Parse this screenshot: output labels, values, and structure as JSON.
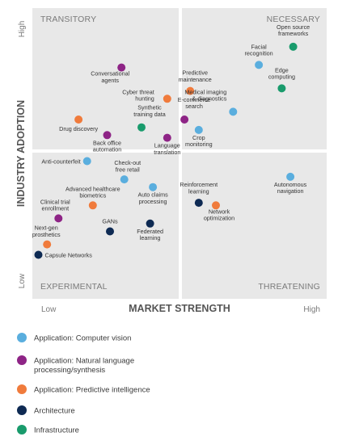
{
  "chart_data": {
    "type": "scatter",
    "title": "",
    "xlabel": "MARKET STRENGTH",
    "ylabel": "INDUSTRY ADOPTION",
    "x_low": "Low",
    "x_high": "High",
    "y_low": "Low",
    "y_high": "High",
    "xlim": [
      0,
      100
    ],
    "ylim": [
      0,
      100
    ],
    "grid": false,
    "legend_position": "bottom",
    "quadrants": {
      "top_left": "TRANSITORY",
      "top_right": "NECESSARY",
      "bottom_left": "EXPERIMENTAL",
      "bottom_right": "THREATENING"
    },
    "categories": [
      {
        "key": "cv",
        "name": "Application: Computer vision",
        "color": "#5aaede"
      },
      {
        "key": "nlp",
        "name": "Application: Natural language processing/synthesis",
        "color": "#8e2486"
      },
      {
        "key": "pi",
        "name": "Application: Predictive intelligence",
        "color": "#f07b3c"
      },
      {
        "key": "arch",
        "name": "Architecture",
        "color": "#0e2a53"
      },
      {
        "key": "infra",
        "name": "Infrastructure",
        "color": "#199b6c"
      }
    ],
    "points": [
      {
        "label": "Open source frameworks",
        "category": "infra",
        "x": 90,
        "y": 87
      },
      {
        "label": "Facial recognition",
        "category": "cv",
        "x": 78,
        "y": 80
      },
      {
        "label": "Edge computing",
        "category": "infra",
        "x": 86,
        "y": 71
      },
      {
        "label": "Conversational agents",
        "category": "nlp",
        "x": 30,
        "y": 79
      },
      {
        "label": "Predictive maintenance",
        "category": "pi",
        "x": 54,
        "y": 70
      },
      {
        "label": "Cyber threat hunting",
        "category": "pi",
        "x": 46,
        "y": 67
      },
      {
        "label": "Medical imaging & diagnostics",
        "category": "cv",
        "x": 69,
        "y": 62
      },
      {
        "label": "E-commerce search",
        "category": "nlp",
        "x": 52,
        "y": 59
      },
      {
        "label": "Synthetic training data",
        "category": "infra",
        "x": 37,
        "y": 56
      },
      {
        "label": "Drug discovery",
        "category": "pi",
        "x": 15,
        "y": 59
      },
      {
        "label": "Crop monitoring",
        "category": "cv",
        "x": 57,
        "y": 55
      },
      {
        "label": "Back office automation",
        "category": "nlp",
        "x": 25,
        "y": 53
      },
      {
        "label": "Language translation",
        "category": "nlp",
        "x": 46,
        "y": 52
      },
      {
        "label": "Anti-counterfeit",
        "category": "cv",
        "x": 18,
        "y": 43
      },
      {
        "label": "Check-out free retail",
        "category": "cv",
        "x": 31,
        "y": 36
      },
      {
        "label": "Auto claims processing",
        "category": "cv",
        "x": 41,
        "y": 33
      },
      {
        "label": "Autonomous navigation",
        "category": "cv",
        "x": 89,
        "y": 37
      },
      {
        "label": "Reinforcement learning",
        "category": "arch",
        "x": 57,
        "y": 27
      },
      {
        "label": "Network optimization",
        "category": "pi",
        "x": 63,
        "y": 26
      },
      {
        "label": "Advanced healthcare biometrics",
        "category": "pi",
        "x": 20,
        "y": 26
      },
      {
        "label": "Clinical trial enrollment",
        "category": "nlp",
        "x": 8,
        "y": 21
      },
      {
        "label": "GANs",
        "category": "arch",
        "x": 26,
        "y": 16
      },
      {
        "label": "Federated learning",
        "category": "arch",
        "x": 40,
        "y": 19
      },
      {
        "label": "Next-gen prosthetics",
        "category": "pi",
        "x": 4,
        "y": 11
      },
      {
        "label": "Capsule Networks",
        "category": "arch",
        "x": 1,
        "y": 7
      }
    ]
  }
}
